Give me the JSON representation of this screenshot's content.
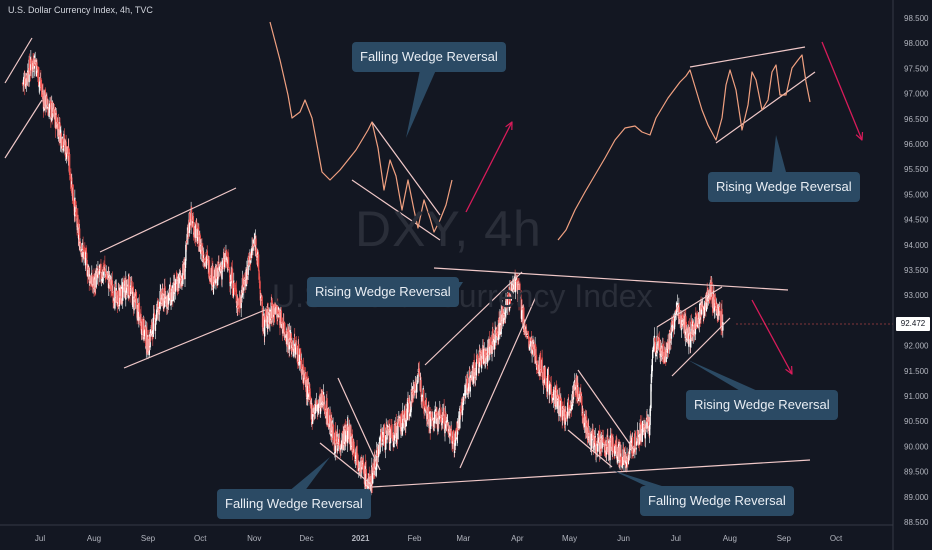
{
  "title": "U.S. Dollar Currency Index, 4h, TVC",
  "watermark_symbol": "DXY, 4h",
  "watermark_name": "U.S. Dollar Currency Index",
  "current_price": "92.472",
  "annotations": [
    "Falling Wedge Reversal",
    "Rising Wedge Reversal",
    "Falling Wedge Reversal",
    "Falling Wedge Reversal",
    "Rising Wedge Reversal",
    "Rising Wedge Reversal"
  ],
  "colors": {
    "background": "#131722",
    "candle_up": "#ffffff",
    "candle_down": "#ef5350",
    "trendline": "#f0c8c8",
    "arrow": "#d81b5a",
    "callout_bg": "#2b4a64"
  },
  "chart_data": {
    "type": "candlestick",
    "title": "U.S. Dollar Currency Index, 4h, TVC",
    "x_ticks": [
      "Jul",
      "Aug",
      "Sep",
      "Oct",
      "Nov",
      "Dec",
      "2021",
      "Feb",
      "Mar",
      "Apr",
      "May",
      "Jun",
      "Jul",
      "Aug",
      "Sep",
      "Oct"
    ],
    "y_ticks": [
      "98.500",
      "98.000",
      "97.500",
      "97.000",
      "96.500",
      "96.000",
      "95.500",
      "95.000",
      "94.500",
      "94.000",
      "93.500",
      "93.000",
      "92.500",
      "92.000",
      "91.500",
      "91.000",
      "90.500",
      "90.000",
      "89.500",
      "89.000",
      "88.500"
    ],
    "ylim": [
      88.4,
      98.6
    ],
    "price_path": [
      [
        "Jun 21",
        97.2
      ],
      [
        "Jun 28",
        97.7
      ],
      [
        "Jul 3",
        96.9
      ],
      [
        "Jul 10",
        96.5
      ],
      [
        "Jul 17",
        95.8
      ],
      [
        "Jul 23",
        94.2
      ],
      [
        "Jul 31",
        93.2
      ],
      [
        "Aug 7",
        93.5
      ],
      [
        "Aug 14",
        92.9
      ],
      [
        "Aug 21",
        93.2
      ],
      [
        "Aug 28",
        92.5
      ],
      [
        "Sep 1",
        92.0
      ],
      [
        "Sep 8",
        92.9
      ],
      [
        "Sep 15",
        93.0
      ],
      [
        "Sep 22",
        93.5
      ],
      [
        "Sep 25",
        94.6
      ],
      [
        "Oct 2",
        93.9
      ],
      [
        "Oct 9",
        93.3
      ],
      [
        "Oct 16",
        93.7
      ],
      [
        "Oct 23",
        92.8
      ],
      [
        "Oct 30",
        93.8
      ],
      [
        "Nov 2",
        94.1
      ],
      [
        "Nov 6",
        92.4
      ],
      [
        "Nov 13",
        92.8
      ],
      [
        "Nov 20",
        92.2
      ],
      [
        "Nov 27",
        91.8
      ],
      [
        "Dec 4",
        90.7
      ],
      [
        "Dec 11",
        90.9
      ],
      [
        "Dec 18",
        90.0
      ],
      [
        "Dec 25",
        90.3
      ],
      [
        "Jan 6",
        89.2
      ],
      [
        "Jan 13",
        90.2
      ],
      [
        "Jan 20",
        90.2
      ],
      [
        "Jan 27",
        90.6
      ],
      [
        "Feb 3",
        91.4
      ],
      [
        "Feb 10",
        90.5
      ],
      [
        "Feb 17",
        90.6
      ],
      [
        "Feb 24",
        90.1
      ],
      [
        "Mar 3",
        91.2
      ],
      [
        "Mar 10",
        91.7
      ],
      [
        "Mar 17",
        92.0
      ],
      [
        "Mar 24",
        92.6
      ],
      [
        "Mar 31",
        93.3
      ],
      [
        "Apr 7",
        92.1
      ],
      [
        "Apr 14",
        91.6
      ],
      [
        "Apr 21",
        91.1
      ],
      [
        "Apr 28",
        90.6
      ],
      [
        "May 5",
        91.2
      ],
      [
        "May 12",
        90.2
      ],
      [
        "May 19",
        90.0
      ],
      [
        "May 26",
        90.0
      ],
      [
        "Jun 2",
        89.7
      ],
      [
        "Jun 9",
        90.2
      ],
      [
        "Jun 16",
        90.4
      ],
      [
        "Jun 18",
        92.1
      ],
      [
        "Jun 25",
        91.8
      ],
      [
        "Jul 2",
        92.7
      ],
      [
        "Jul 9",
        92.2
      ],
      [
        "Jul 16",
        92.7
      ],
      [
        "Jul 21",
        93.1
      ],
      [
        "Jul 28",
        92.4
      ]
    ],
    "grid": false,
    "legend": "none"
  }
}
